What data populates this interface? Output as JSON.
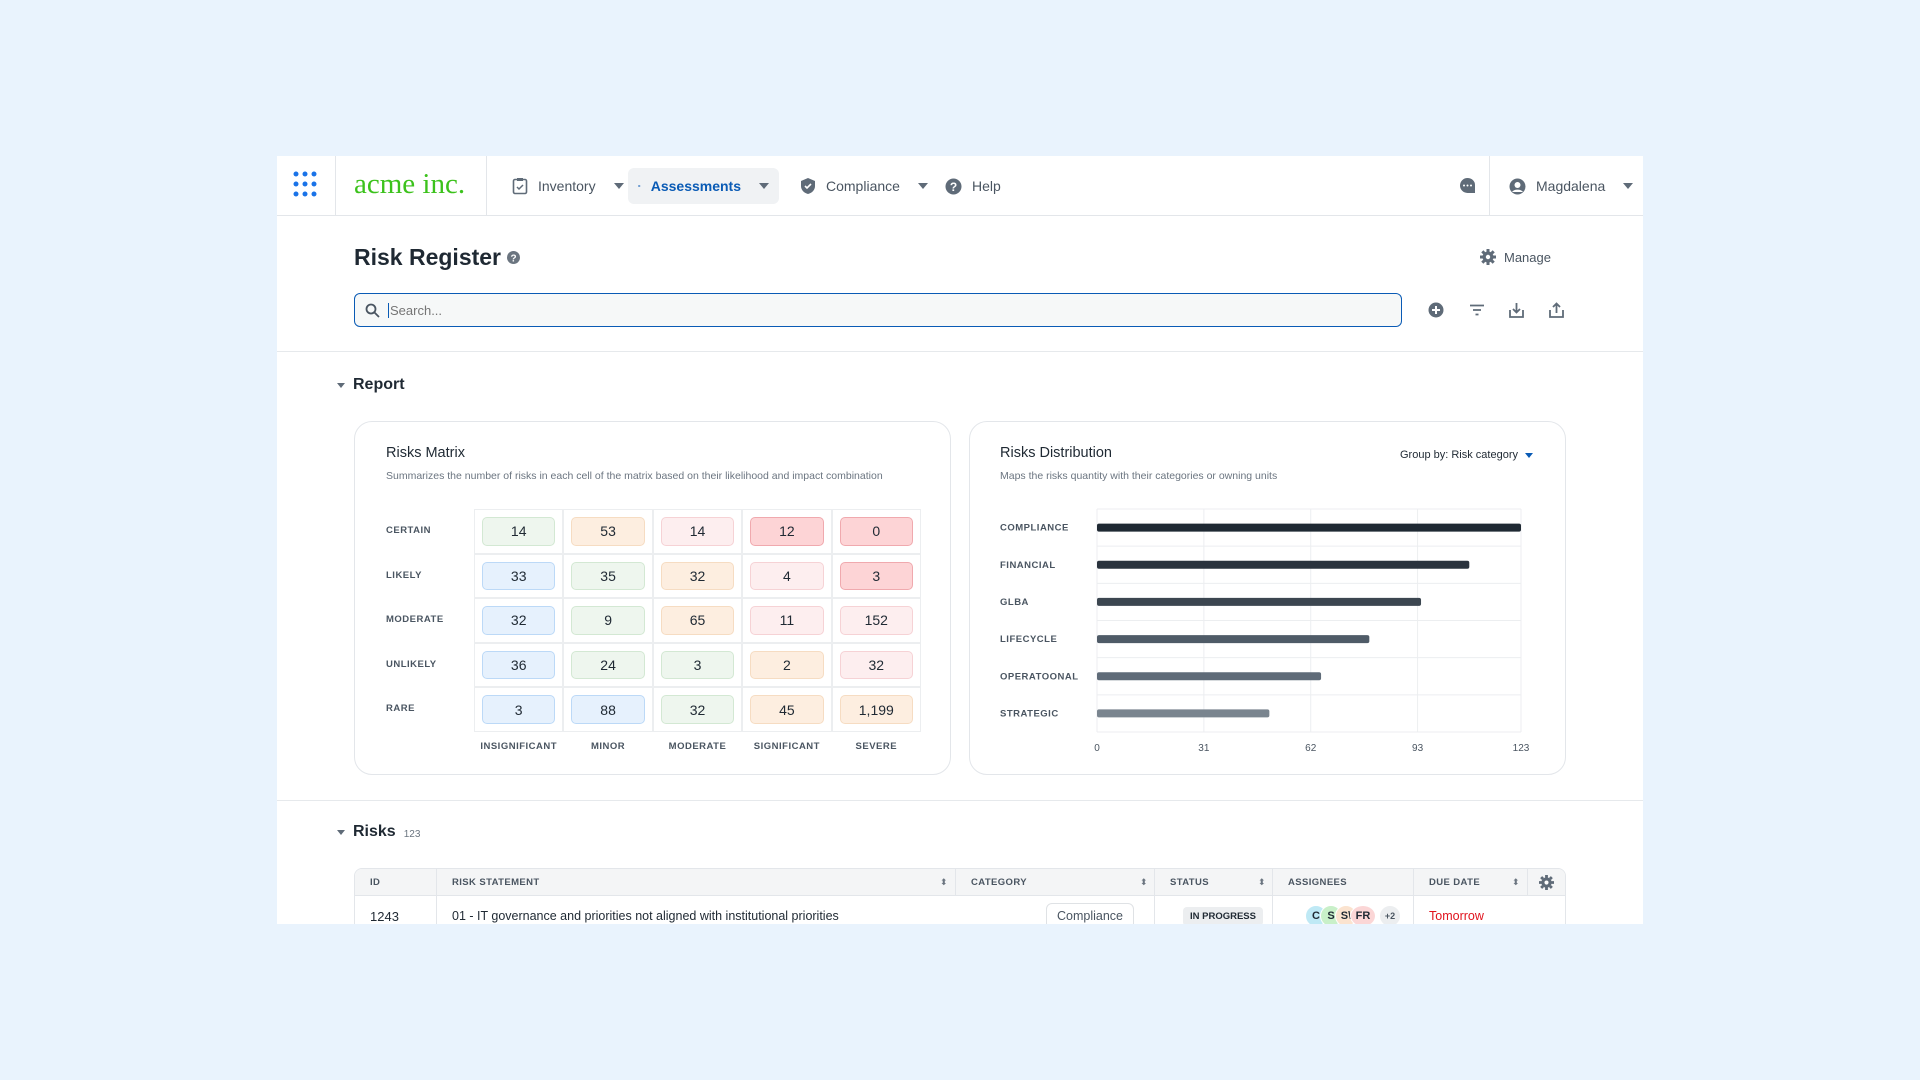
{
  "nav": {
    "brand": "acme inc.",
    "items": [
      {
        "label": "Inventory"
      },
      {
        "label": "Assessments"
      },
      {
        "label": "Compliance"
      },
      {
        "label": "Help"
      }
    ],
    "user": "Magdalena"
  },
  "header": {
    "title": "Risk Register",
    "manage": "Manage",
    "search_placeholder": "Search..."
  },
  "report": {
    "title": "Report"
  },
  "matrix": {
    "title": "Risks Matrix",
    "subtitle": "Summarizes the number of risks in each cell of the matrix based on their likelihood and impact combination",
    "rows": [
      "CERTAIN",
      "LIKELY",
      "MODERATE",
      "UNLIKELY",
      "RARE"
    ],
    "cols": [
      "INSIGNIFICANT",
      "MINOR",
      "MODERATE",
      "SIGNIFICANT",
      "SEVERE"
    ],
    "values": [
      [
        "14",
        "53",
        "14",
        "12",
        "0"
      ],
      [
        "33",
        "35",
        "32",
        "4",
        "3"
      ],
      [
        "32",
        "9",
        "65",
        "11",
        "152"
      ],
      [
        "36",
        "24",
        "3",
        "2",
        "32"
      ],
      [
        "3",
        "88",
        "32",
        "45",
        "1,199"
      ]
    ],
    "levels": [
      [
        "green",
        "orange",
        "pink",
        "red",
        "red"
      ],
      [
        "blue",
        "green",
        "orange",
        "pink",
        "red"
      ],
      [
        "blue",
        "green",
        "orange",
        "pink",
        "pink"
      ],
      [
        "blue",
        "green",
        "green",
        "orange",
        "pink"
      ],
      [
        "blue",
        "blue",
        "green",
        "orange",
        "orange"
      ]
    ],
    "level_colors": {
      "green": [
        "#eef6ee",
        "#d3e8d3"
      ],
      "orange": [
        "#fdeee0",
        "#f6dcc2"
      ],
      "pink": [
        "#fdeeef",
        "#f6d2d5"
      ],
      "red": [
        "#fdd4d6",
        "#f0a9ae"
      ],
      "blue": [
        "#e6f1fd",
        "#bcd9f7"
      ]
    }
  },
  "chart_data": {
    "type": "bar",
    "title": "Risks Distribution",
    "subtitle": "Maps the risks quantity with their categories or owning units",
    "group_by": "Group by: Risk category",
    "categories": [
      "COMPLIANCE",
      "FINANCIAL",
      "GLBA",
      "LIFECYCLE",
      "OPERATOONAL",
      "STRATEGIC"
    ],
    "values": [
      123,
      108,
      94,
      79,
      65,
      50
    ],
    "xticks": [
      "0",
      "31",
      "62",
      "93",
      "123"
    ],
    "xlim": [
      0,
      123
    ],
    "colors": [
      "#1f2933",
      "#2a333d",
      "#3c4650",
      "#4f5b67",
      "#5f6b78",
      "#7a858f"
    ]
  },
  "risks": {
    "title": "Risks",
    "count": "123",
    "columns": [
      "ID",
      "RISK STATEMENT",
      "CATEGORY",
      "STATUS",
      "ASSIGNEES",
      "DUE DATE"
    ],
    "rows": [
      {
        "id": "1243",
        "statement": "01 - IT governance and priorities not aligned with institutional priorities",
        "category": "Compliance",
        "status": "IN PROGRESS",
        "assignees": [
          "C",
          "S",
          "S\\",
          "FR"
        ],
        "more": "+2",
        "due": "Tomorrow"
      }
    ]
  }
}
